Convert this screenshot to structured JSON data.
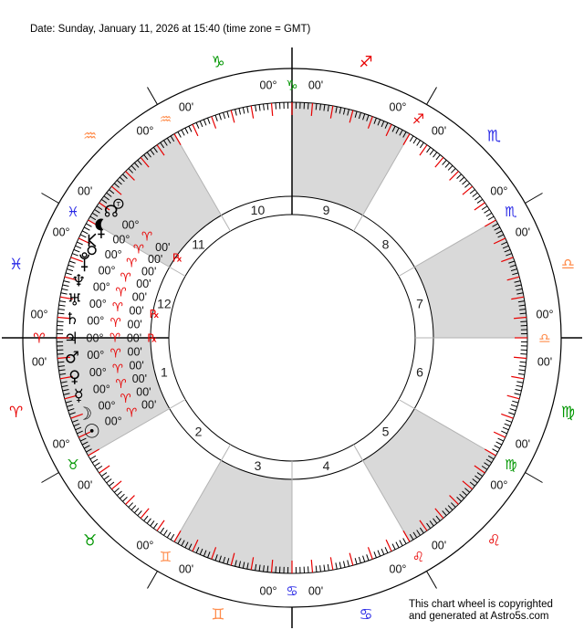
{
  "header": {
    "date_line": "Date: Sunday, January 11, 2026 at 15:40 (time zone = GMT)"
  },
  "footer": {
    "line1": "This chart wheel is copyrighted",
    "line2": "and generated at Astro5s.com"
  },
  "chart_data": {
    "type": "astrology_wheel",
    "title": "Natal chart wheel for Sunday, January 11, 2026 at 15:40 GMT",
    "orientation": "Ascendant 0° Aries on the left; signs run counterclockwise; house cusps every 30°",
    "colors": {
      "ink": "#000000",
      "degree_text": "#111111",
      "red_accent": "#e80000",
      "shaded_house_fill": "#d9d9d9",
      "cusp_line": "#b3b3b3",
      "house_number": "#222222",
      "element_fire": "#e80000",
      "element_earth": "#009600",
      "element_air": "#ff8c4b",
      "element_water": "#2828e6"
    },
    "ticks": {
      "minor_step_deg": 1,
      "major_step_deg": 5,
      "minor_color": "#000000",
      "major_color": "#e80000"
    },
    "zodiac": [
      {
        "name": "Aries",
        "glyph": "♈",
        "element": "fire"
      },
      {
        "name": "Taurus",
        "glyph": "♉",
        "element": "earth"
      },
      {
        "name": "Gemini",
        "glyph": "♊",
        "element": "air"
      },
      {
        "name": "Cancer",
        "glyph": "♋",
        "element": "water"
      },
      {
        "name": "Leo",
        "glyph": "♌",
        "element": "fire"
      },
      {
        "name": "Virgo",
        "glyph": "♍",
        "element": "earth"
      },
      {
        "name": "Libra",
        "glyph": "♎",
        "element": "air"
      },
      {
        "name": "Scorpio",
        "glyph": "♏",
        "element": "water"
      },
      {
        "name": "Sagittarius",
        "glyph": "♐",
        "element": "fire"
      },
      {
        "name": "Capricorn",
        "glyph": "♑",
        "element": "earth"
      },
      {
        "name": "Aquarius",
        "glyph": "♒",
        "element": "air"
      },
      {
        "name": "Pisces",
        "glyph": "♓",
        "element": "water"
      }
    ],
    "houses": [
      {
        "number": 1,
        "shaded": true,
        "cusp_degree": "00°",
        "cusp_sign": "Aries",
        "cusp_minute": "00'"
      },
      {
        "number": 2,
        "shaded": false,
        "cusp_degree": "00°",
        "cusp_sign": "Taurus",
        "cusp_minute": "00'"
      },
      {
        "number": 3,
        "shaded": true,
        "cusp_degree": "00°",
        "cusp_sign": "Gemini",
        "cusp_minute": "00'"
      },
      {
        "number": 4,
        "shaded": false,
        "cusp_degree": "00°",
        "cusp_sign": "Cancer",
        "cusp_minute": "00'"
      },
      {
        "number": 5,
        "shaded": true,
        "cusp_degree": "00°",
        "cusp_sign": "Leo",
        "cusp_minute": "00'"
      },
      {
        "number": 6,
        "shaded": false,
        "cusp_degree": "00°",
        "cusp_sign": "Virgo",
        "cusp_minute": "00'"
      },
      {
        "number": 7,
        "shaded": true,
        "cusp_degree": "00°",
        "cusp_sign": "Libra",
        "cusp_minute": "00'"
      },
      {
        "number": 8,
        "shaded": false,
        "cusp_degree": "00°",
        "cusp_sign": "Scorpio",
        "cusp_minute": "00'"
      },
      {
        "number": 9,
        "shaded": true,
        "cusp_degree": "00°",
        "cusp_sign": "Sagittarius",
        "cusp_minute": "00'"
      },
      {
        "number": 10,
        "shaded": false,
        "cusp_degree": "00°",
        "cusp_sign": "Capricorn",
        "cusp_minute": "00'"
      },
      {
        "number": 11,
        "shaded": true,
        "cusp_degree": "00°",
        "cusp_sign": "Aquarius",
        "cusp_minute": "00'"
      },
      {
        "number": 12,
        "shaded": false,
        "cusp_degree": "00°",
        "cusp_sign": "Pisces",
        "cusp_minute": "00'"
      }
    ],
    "planets": [
      {
        "id": "north-node",
        "name": "North Node (true)",
        "glyph": "☊",
        "custom": "node",
        "badge": "T",
        "degree": "00°",
        "sign": "Aries",
        "sign_glyph": "♈",
        "minute": "00'",
        "retrograde": true
      },
      {
        "id": "lilith",
        "name": "Black Moon Lilith",
        "glyph": "⚸",
        "custom": "lilith",
        "degree": "00°",
        "sign": "Aries",
        "sign_glyph": "♈",
        "minute": "00'",
        "retrograde": false
      },
      {
        "id": "chiron",
        "name": "Chiron",
        "glyph": "⚷",
        "custom": "chiron",
        "degree": "00°",
        "sign": "Aries",
        "sign_glyph": "♈",
        "minute": "00'",
        "retrograde": false
      },
      {
        "id": "pluto",
        "name": "Pluto",
        "glyph": "♇",
        "custom": "pluto",
        "degree": "00°",
        "sign": "Aries",
        "sign_glyph": "♈",
        "minute": "00'",
        "retrograde": false
      },
      {
        "id": "neptune",
        "name": "Neptune",
        "glyph": "♆",
        "degree": "00°",
        "sign": "Aries",
        "sign_glyph": "♈",
        "minute": "00'",
        "retrograde": false
      },
      {
        "id": "uranus",
        "name": "Uranus",
        "glyph": "♅",
        "degree": "00°",
        "sign": "Aries",
        "sign_glyph": "♈",
        "minute": "00'",
        "retrograde": true
      },
      {
        "id": "saturn",
        "name": "Saturn",
        "glyph": "♄",
        "degree": "00°",
        "sign": "Aries",
        "sign_glyph": "♈",
        "minute": "00'",
        "retrograde": false
      },
      {
        "id": "jupiter",
        "name": "Jupiter",
        "glyph": "♃",
        "degree": "00°",
        "sign": "Aries",
        "sign_glyph": "♈",
        "minute": "00'",
        "retrograde": true
      },
      {
        "id": "mars",
        "name": "Mars",
        "glyph": "♂",
        "degree": "00°",
        "sign": "Aries",
        "sign_glyph": "♈",
        "minute": "00'",
        "retrograde": false
      },
      {
        "id": "venus",
        "name": "Venus",
        "glyph": "♀",
        "degree": "00°",
        "sign": "Aries",
        "sign_glyph": "♈",
        "minute": "00'",
        "retrograde": false
      },
      {
        "id": "mercury",
        "name": "Mercury",
        "glyph": "☿",
        "degree": "00°",
        "sign": "Aries",
        "sign_glyph": "♈",
        "minute": "00'",
        "retrograde": false
      },
      {
        "id": "moon",
        "name": "Moon",
        "glyph": "☽",
        "size": 19,
        "degree": "00°",
        "sign": "Aries",
        "sign_glyph": "♈",
        "minute": "00'",
        "retrograde": false
      },
      {
        "id": "sun",
        "name": "Sun",
        "glyph": "☉",
        "size": 21,
        "degree": "00°",
        "sign": "Aries",
        "sign_glyph": "♈",
        "minute": "00'",
        "retrograde": false
      }
    ],
    "retrograde_symbol": "℞"
  }
}
